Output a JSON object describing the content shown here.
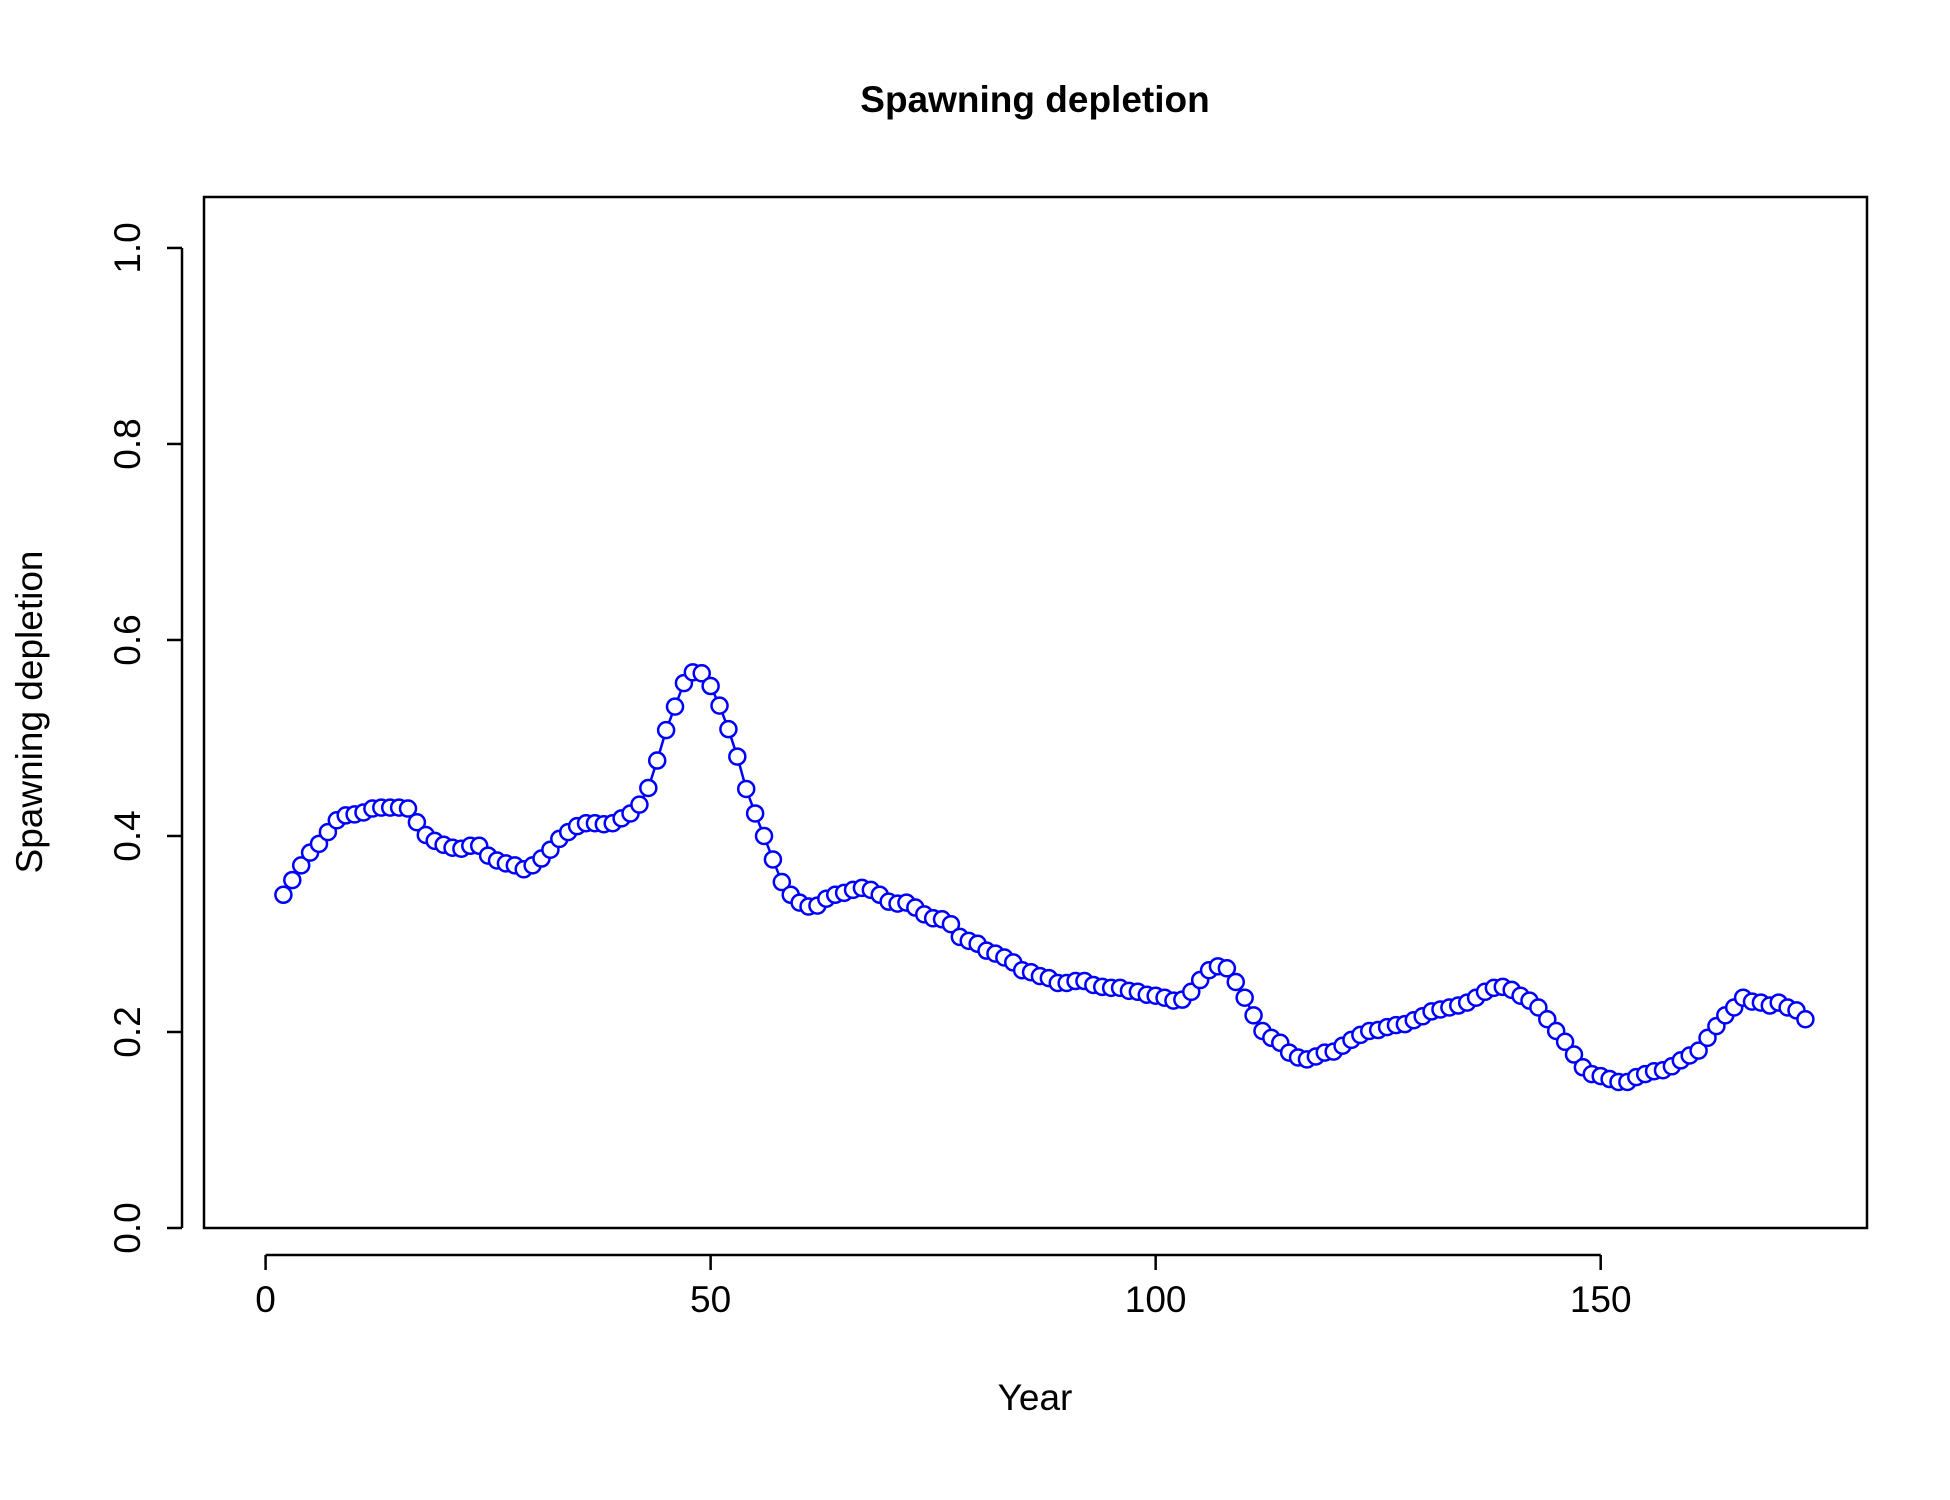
{
  "chart_data": {
    "type": "line",
    "title": "Spawning depletion",
    "xlabel": "Year",
    "ylabel": "Spawning depletion",
    "series": [
      {
        "name": "Spawning depletion",
        "color": "#0000ff",
        "x": [
          2,
          3,
          4,
          5,
          6,
          7,
          8,
          9,
          10,
          11,
          12,
          13,
          14,
          15,
          16,
          17,
          18,
          19,
          20,
          21,
          22,
          23,
          24,
          25,
          26,
          27,
          28,
          29,
          30,
          31,
          32,
          33,
          34,
          35,
          36,
          37,
          38,
          39,
          40,
          41,
          42,
          43,
          44,
          45,
          46,
          47,
          48,
          49,
          50,
          51,
          52,
          53,
          54,
          55,
          56,
          57,
          58,
          59,
          60,
          61,
          62,
          63,
          64,
          65,
          66,
          67,
          68,
          69,
          70,
          71,
          72,
          73,
          74,
          75,
          76,
          77,
          78,
          79,
          80,
          81,
          82,
          83,
          84,
          85,
          86,
          87,
          88,
          89,
          90,
          91,
          92,
          93,
          94,
          95,
          96,
          97,
          98,
          99,
          100,
          101,
          102,
          103,
          104,
          105,
          106,
          107,
          108,
          109,
          110,
          111,
          112,
          113,
          114,
          115,
          116,
          117,
          118,
          119,
          120,
          121,
          122,
          123,
          124,
          125,
          126,
          127,
          128,
          129,
          130,
          131,
          132,
          133,
          134,
          135,
          136,
          137,
          138,
          139,
          140,
          141,
          142,
          143,
          144,
          145,
          146,
          147,
          148,
          149,
          150,
          151,
          152,
          153,
          154,
          155,
          156,
          157,
          158,
          159,
          160,
          161,
          162,
          163,
          164,
          165,
          166,
          167,
          168,
          169,
          170,
          171,
          172,
          173
        ],
        "values": [
          0.34,
          0.355,
          0.37,
          0.383,
          0.392,
          0.404,
          0.416,
          0.421,
          0.422,
          0.424,
          0.428,
          0.429,
          0.429,
          0.429,
          0.428,
          0.414,
          0.401,
          0.395,
          0.391,
          0.388,
          0.387,
          0.39,
          0.39,
          0.38,
          0.375,
          0.372,
          0.37,
          0.366,
          0.37,
          0.377,
          0.386,
          0.397,
          0.404,
          0.41,
          0.413,
          0.413,
          0.412,
          0.413,
          0.418,
          0.423,
          0.432,
          0.449,
          0.477,
          0.508,
          0.532,
          0.556,
          0.567,
          0.566,
          0.553,
          0.533,
          0.509,
          0.481,
          0.448,
          0.423,
          0.4,
          0.376,
          0.353,
          0.34,
          0.332,
          0.328,
          0.329,
          0.336,
          0.34,
          0.342,
          0.345,
          0.347,
          0.345,
          0.34,
          0.333,
          0.331,
          0.332,
          0.327,
          0.32,
          0.316,
          0.315,
          0.31,
          0.297,
          0.293,
          0.29,
          0.283,
          0.28,
          0.276,
          0.271,
          0.263,
          0.261,
          0.257,
          0.255,
          0.25,
          0.25,
          0.252,
          0.252,
          0.248,
          0.246,
          0.245,
          0.245,
          0.242,
          0.241,
          0.238,
          0.237,
          0.235,
          0.232,
          0.233,
          0.241,
          0.253,
          0.263,
          0.267,
          0.265,
          0.251,
          0.235,
          0.217,
          0.201,
          0.194,
          0.189,
          0.179,
          0.174,
          0.172,
          0.175,
          0.179,
          0.18,
          0.186,
          0.192,
          0.197,
          0.201,
          0.202,
          0.205,
          0.207,
          0.208,
          0.212,
          0.216,
          0.221,
          0.223,
          0.225,
          0.227,
          0.23,
          0.235,
          0.241,
          0.245,
          0.246,
          0.243,
          0.237,
          0.232,
          0.225,
          0.213,
          0.201,
          0.19,
          0.177,
          0.164,
          0.157,
          0.155,
          0.152,
          0.149,
          0.149,
          0.154,
          0.157,
          0.16,
          0.161,
          0.165,
          0.171,
          0.176,
          0.181,
          0.194,
          0.206,
          0.217,
          0.225,
          0.235,
          0.231,
          0.23,
          0.227,
          0.23,
          0.225,
          0.222,
          0.213
        ]
      }
    ],
    "xlim": [
      -6.92,
      179.92
    ],
    "ylim": [
      0,
      1.052
    ],
    "xticks": [
      0,
      50,
      100,
      150
    ],
    "yticks": [
      {
        "value": 0,
        "label": "0.0"
      },
      0.2,
      0.4,
      0.6,
      0.8,
      {
        "value": 1,
        "label": "1.0"
      }
    ]
  }
}
